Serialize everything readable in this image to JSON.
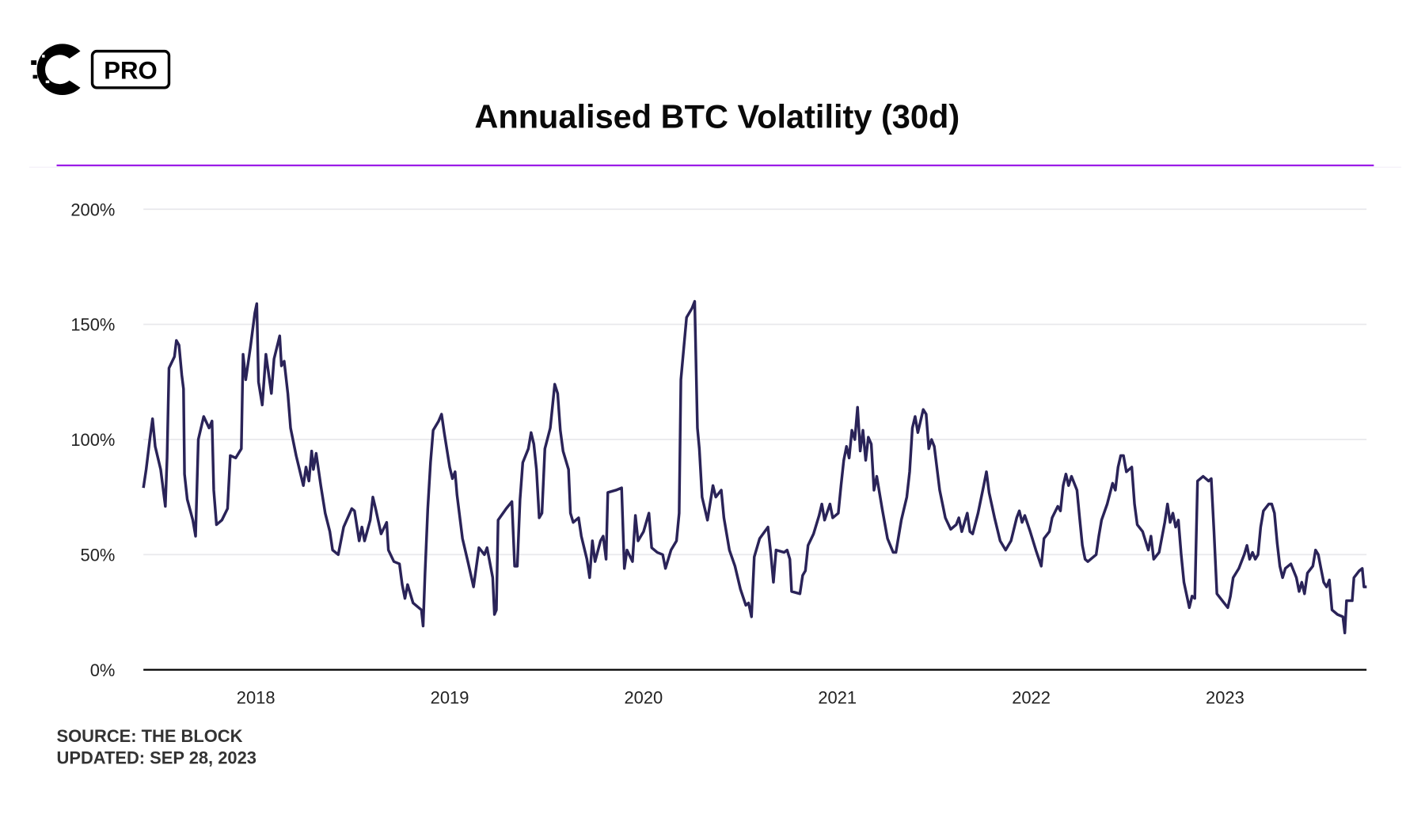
{
  "logo": {
    "badge_text": "PRO"
  },
  "chart_data": {
    "type": "line",
    "title": "Annualised BTC Volatility (30d)",
    "xlabel": "",
    "ylabel": "",
    "xlim": [
      2017.42,
      2023.73
    ],
    "ylim": [
      0,
      200
    ],
    "x_ticks": [
      2018,
      2019,
      2020,
      2021,
      2022,
      2023
    ],
    "x_tick_labels": [
      "2018",
      "2019",
      "2020",
      "2021",
      "2022",
      "2023"
    ],
    "y_ticks": [
      0,
      50,
      100,
      150,
      200
    ],
    "y_tick_labels": [
      "0%",
      "50%",
      "100%",
      "150%",
      "200%"
    ],
    "grid": true,
    "colors": {
      "line": "#2a2358",
      "accent_rule": "#9b1de8",
      "grid": "#e8e8ec",
      "axis": "#111111"
    },
    "series": [
      {
        "x": [
          2017.42,
          2017.434,
          2017.453,
          2017.467,
          2017.481,
          2017.509,
          2017.533,
          2017.542,
          2017.552,
          2017.58,
          2017.59,
          2017.604,
          2017.618,
          2017.627,
          2017.632,
          2017.646,
          2017.675,
          2017.689,
          2017.703,
          2017.731,
          2017.759,
          2017.774,
          2017.783,
          2017.797,
          2017.825,
          2017.854,
          2017.868,
          2017.896,
          2017.925,
          2017.934,
          2017.948,
          2017.972,
          2017.995,
          2018.005,
          2018.014,
          2018.033,
          2018.052,
          2018.08,
          2018.094,
          2018.123,
          2018.132,
          2018.146,
          2018.165,
          2018.179,
          2018.208,
          2018.245,
          2018.259,
          2018.274,
          2018.288,
          2018.297,
          2018.311,
          2018.335,
          2018.358,
          2018.382,
          2018.396,
          2018.425,
          2018.453,
          2018.495,
          2018.509,
          2018.533,
          2018.547,
          2018.561,
          2018.59,
          2018.604,
          2018.618,
          2018.646,
          2018.675,
          2018.684,
          2018.712,
          2018.741,
          2018.755,
          2018.769,
          2018.783,
          2018.811,
          2018.854,
          2018.863,
          2018.873,
          2018.887,
          2018.901,
          2018.915,
          2018.943,
          2018.958,
          2018.972,
          2019.0,
          2019.014,
          2019.028,
          2019.038,
          2019.066,
          2019.094,
          2019.123,
          2019.151,
          2019.179,
          2019.193,
          2019.222,
          2019.231,
          2019.241,
          2019.25,
          2019.292,
          2019.321,
          2019.335,
          2019.349,
          2019.363,
          2019.377,
          2019.406,
          2019.42,
          2019.434,
          2019.448,
          2019.462,
          2019.476,
          2019.491,
          2019.519,
          2019.542,
          2019.557,
          2019.571,
          2019.585,
          2019.613,
          2019.623,
          2019.637,
          2019.665,
          2019.679,
          2019.708,
          2019.722,
          2019.736,
          2019.75,
          2019.778,
          2019.792,
          2019.807,
          2019.816,
          2019.858,
          2019.887,
          2019.901,
          2019.915,
          2019.943,
          2019.958,
          2019.972,
          2020.0,
          2020.028,
          2020.042,
          2020.071,
          2020.099,
          2020.113,
          2020.142,
          2020.17,
          2020.184,
          2020.193,
          2020.208,
          2020.222,
          2020.25,
          2020.264,
          2020.278,
          2020.288,
          2020.302,
          2020.33,
          2020.358,
          2020.373,
          2020.401,
          2020.415,
          2020.443,
          2020.472,
          2020.5,
          2020.528,
          2020.542,
          2020.557,
          2020.571,
          2020.599,
          2020.642,
          2020.656,
          2020.67,
          2020.684,
          2020.726,
          2020.741,
          2020.755,
          2020.764,
          2020.807,
          2020.821,
          2020.835,
          2020.849,
          2020.877,
          2020.906,
          2020.92,
          2020.934,
          2020.962,
          2020.976,
          2021.005,
          2021.019,
          2021.033,
          2021.047,
          2021.061,
          2021.075,
          2021.09,
          2021.104,
          2021.118,
          2021.132,
          2021.146,
          2021.16,
          2021.175,
          2021.189,
          2021.203,
          2021.231,
          2021.259,
          2021.288,
          2021.302,
          2021.33,
          2021.358,
          2021.373,
          2021.387,
          2021.401,
          2021.415,
          2021.443,
          2021.458,
          2021.472,
          2021.486,
          2021.5,
          2021.528,
          2021.557,
          2021.585,
          2021.613,
          2021.627,
          2021.642,
          2021.67,
          2021.684,
          2021.698,
          2021.726,
          2021.755,
          2021.769,
          2021.783,
          2021.811,
          2021.84,
          2021.868,
          2021.896,
          2021.925,
          2021.939,
          2021.953,
          2021.967,
          2021.995,
          2022.024,
          2022.052,
          2022.066,
          2022.094,
          2022.108,
          2022.137,
          2022.151,
          2022.165,
          2022.179,
          2022.193,
          2022.208,
          2022.236,
          2022.25,
          2022.264,
          2022.278,
          2022.292,
          2022.335,
          2022.349,
          2022.363,
          2022.392,
          2022.42,
          2022.434,
          2022.448,
          2022.462,
          2022.476,
          2022.491,
          2022.519,
          2022.533,
          2022.547,
          2022.575,
          2022.604,
          2022.618,
          2022.632,
          2022.66,
          2022.689,
          2022.703,
          2022.717,
          2022.731,
          2022.745,
          2022.759,
          2022.774,
          2022.788,
          2022.816,
          2022.83,
          2022.844,
          2022.858,
          2022.887,
          2022.915,
          2022.929,
          2022.943,
          2022.958,
          2022.986,
          2023.014,
          2023.028,
          2023.042,
          2023.071,
          2023.099,
          2023.113,
          2023.127,
          2023.142,
          2023.156,
          2023.17,
          2023.184,
          2023.198,
          2023.226,
          2023.241,
          2023.255,
          2023.269,
          2023.283,
          2023.297,
          2023.311,
          2023.34,
          2023.368,
          2023.382,
          2023.396,
          2023.41,
          2023.425,
          2023.453,
          2023.467,
          2023.481,
          2023.495,
          2023.509,
          2023.524,
          2023.538,
          2023.552,
          2023.58,
          2023.608,
          2023.618,
          2023.627,
          2023.656,
          2023.665,
          2023.693,
          2023.708,
          2023.717,
          2023.731
        ],
        "y": [
          79,
          87,
          100,
          109,
          97,
          87,
          71,
          92,
          131,
          136,
          143,
          141,
          128,
          122,
          85,
          74,
          65,
          58,
          100,
          110,
          105,
          108,
          78,
          63,
          65,
          70,
          93,
          92,
          96,
          137,
          126,
          140,
          155,
          159,
          125,
          115,
          137,
          120,
          135,
          145,
          132,
          134,
          120,
          105,
          93,
          80,
          88,
          82,
          95,
          87,
          94,
          80,
          68,
          60,
          52,
          50,
          62,
          70,
          69,
          56,
          62,
          56,
          65,
          75,
          70,
          59,
          64,
          52,
          47,
          46,
          37,
          31,
          37,
          29,
          26,
          19,
          42,
          70,
          90,
          104,
          108,
          111,
          103,
          88,
          83,
          86,
          76,
          57,
          47,
          36,
          53,
          50,
          53,
          40,
          24,
          26,
          65,
          70,
          73,
          45,
          45,
          74,
          90,
          96,
          103,
          98,
          87,
          66,
          68,
          96,
          105,
          124,
          120,
          104,
          95,
          87,
          68,
          64,
          66,
          58,
          48,
          40,
          56,
          47,
          56,
          58,
          48,
          77,
          78,
          79,
          44,
          52,
          47,
          67,
          56,
          60,
          68,
          53,
          51,
          50,
          44,
          52,
          56,
          68,
          126,
          140,
          153,
          157,
          160,
          105,
          96,
          75,
          65,
          80,
          75,
          78,
          66,
          52,
          45,
          35,
          28,
          29,
          23,
          49,
          57,
          62,
          51,
          38,
          52,
          51,
          52,
          48,
          34,
          33,
          41,
          43,
          54,
          59,
          67,
          72,
          65,
          72,
          66,
          68,
          80,
          91,
          97,
          92,
          104,
          100,
          114,
          95,
          104,
          91,
          101,
          98,
          78,
          84,
          70,
          57,
          51,
          51,
          65,
          75,
          86,
          105,
          110,
          103,
          113,
          111,
          96,
          100,
          97,
          78,
          66,
          61,
          63,
          66,
          60,
          68,
          60,
          59,
          68,
          80,
          86,
          77,
          66,
          56,
          52,
          56,
          66,
          69,
          64,
          67,
          60,
          52,
          45,
          57,
          60,
          66,
          71,
          69,
          80,
          85,
          80,
          84,
          78,
          66,
          54,
          48,
          47,
          50,
          58,
          65,
          72,
          81,
          78,
          88,
          93,
          93,
          86,
          88,
          72,
          63,
          60,
          52,
          58,
          48,
          51,
          64,
          72,
          64,
          68,
          62,
          65,
          50,
          38,
          27,
          32,
          31,
          82,
          84,
          82,
          83,
          60,
          33,
          30,
          27,
          32,
          40,
          44,
          50,
          54,
          48,
          51,
          48,
          50,
          62,
          69,
          72,
          72,
          68,
          55,
          45,
          40,
          44,
          46,
          40,
          34,
          38,
          33,
          42,
          45,
          52,
          50,
          44,
          38,
          36,
          39,
          26,
          24,
          23,
          16,
          30,
          30,
          40,
          43,
          44,
          36,
          36
        ]
      }
    ]
  },
  "footer": {
    "source": "SOURCE: THE BLOCK",
    "updated": "UPDATED: SEP 28, 2023"
  }
}
